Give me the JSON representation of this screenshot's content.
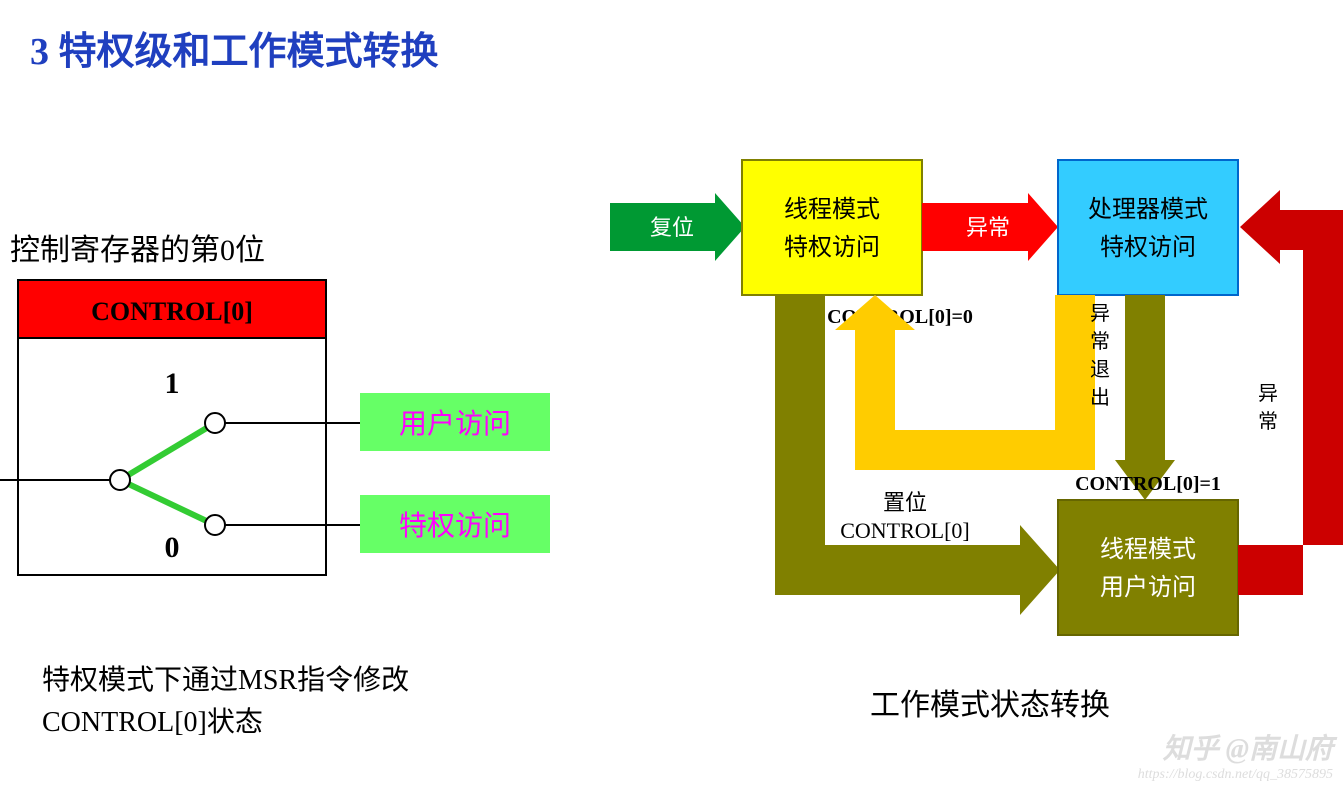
{
  "title": {
    "text": "3 特权级和工作模式转换",
    "color": "#1f3fbf",
    "fontsize": 38,
    "fontweight": "bold"
  },
  "left": {
    "heading": {
      "text": "控制寄存器的第0位",
      "fontsize": 30,
      "color": "#000000"
    },
    "register": {
      "border_color": "#000000",
      "border_width": 2,
      "header_bg": "#ff0000",
      "header_text": "CONTROL[0]",
      "header_color": "#000000",
      "header_fontsize": 26,
      "header_fontweight": "bold",
      "val1": "1",
      "val0": "0",
      "val_fontsize": 30,
      "val_fontweight": "bold",
      "branch_color": "#33cc33",
      "branch_width": 6,
      "circle_fill": "#ffffff",
      "circle_stroke": "#000000",
      "circle_r": 10,
      "box_bg": "#66ff66",
      "box_text_color": "#ff00ff",
      "box_fontsize": 28,
      "user_label": "用户访问",
      "priv_label": "特权访问",
      "line_color": "#000000",
      "line_width": 2
    },
    "note": {
      "text": "特权模式下通过MSR指令修改CONTROL[0]状态",
      "fontsize": 28,
      "color": "#000000"
    }
  },
  "right": {
    "caption": {
      "text": "工作模式状态转换",
      "fontsize": 30,
      "color": "#000000"
    },
    "nodes": {
      "thread_priv": {
        "line1": "线程模式",
        "line2": "特权访问",
        "bg": "#ffff00",
        "border": "#808000",
        "text_color": "#000000",
        "fontsize": 24
      },
      "handler": {
        "line1": "处理器模式",
        "line2": "特权访问",
        "bg": "#33ccff",
        "border": "#0066cc",
        "text_color": "#000000",
        "fontsize": 24
      },
      "thread_user": {
        "line1": "线程模式",
        "line2": "用户访问",
        "bg": "#808000",
        "border": "#666600",
        "text_color": "#ffffff",
        "fontsize": 24
      }
    },
    "arrows": {
      "reset": {
        "label": "复位",
        "fill": "#009933",
        "text_color": "#ffffff",
        "fontsize": 22
      },
      "exception": {
        "label": "异常",
        "fill": "#ff0000",
        "text_color": "#ffffff",
        "fontsize": 22
      },
      "exc_ret_top": {
        "fill": "#808000",
        "label": ""
      },
      "set_ctrl": {
        "fill": "#808000",
        "label1": "置位",
        "label2": "CONTROL[0]",
        "text_color": "#000000",
        "fontsize": 22
      },
      "ctrl0_0": {
        "fill": "#ffcc00",
        "label": "CONTROL[0]=0",
        "text_color": "#000000",
        "fontsize": 20
      },
      "exc_exit": {
        "fill": "#808000",
        "label": "异常退出",
        "text_color": "#000000",
        "fontsize": 20,
        "sublabel": "CONTROL[0]=1"
      },
      "exc_from_user": {
        "fill": "#cc0000",
        "label": "异常",
        "text_color": "#000000",
        "fontsize": 20
      }
    },
    "watermark": {
      "line1": "知乎 @南山府",
      "line2": "https://blog.csdn.net/qq_38575895",
      "color": "#dddddd"
    }
  }
}
